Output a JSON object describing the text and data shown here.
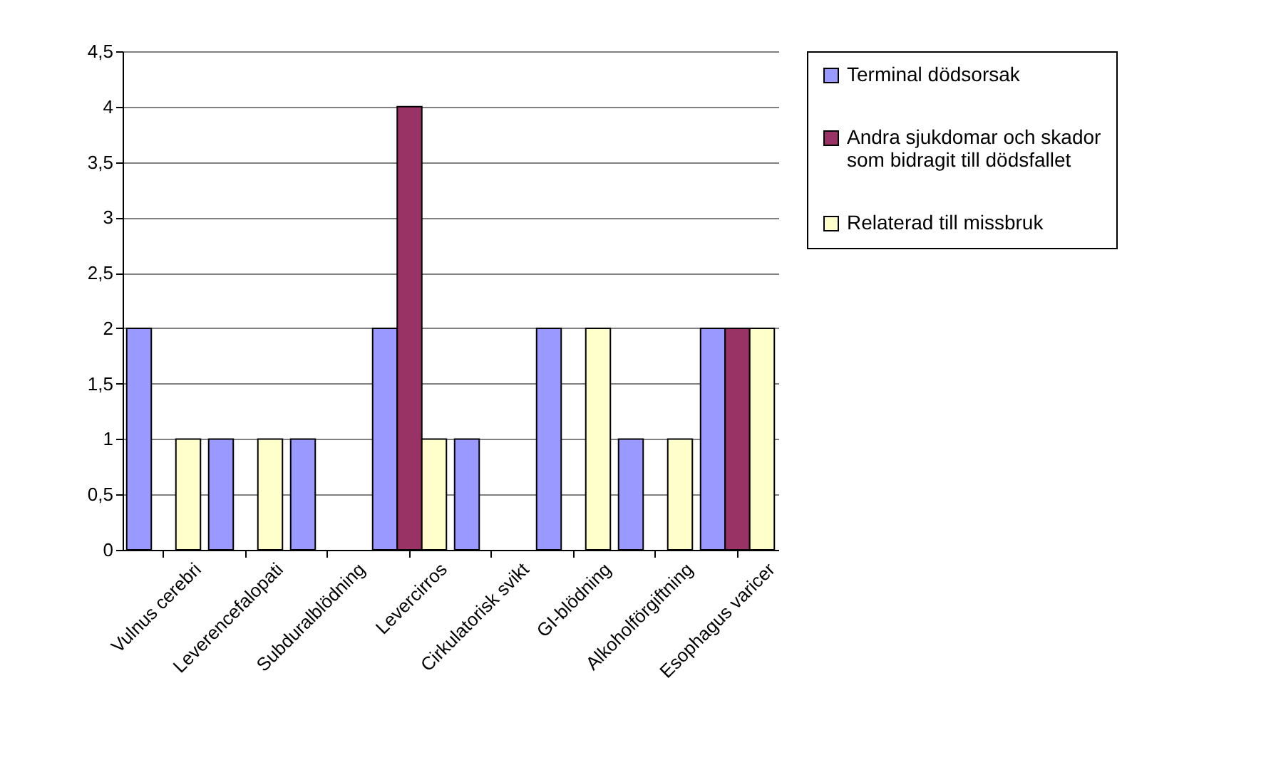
{
  "chart_data": {
    "type": "bar",
    "categories": [
      "Vulnus cerebri",
      "Leverencefalopati",
      "Subduralblödning",
      "Levercirros",
      "Cirkulatorisk svikt",
      "GI-blödning",
      "Alkoholförgiftning",
      "Esophagus varicer"
    ],
    "series": [
      {
        "name": "Terminal dödsorsak",
        "color": "#9999ff",
        "values": [
          2,
          1,
          1,
          2,
          1,
          2,
          1,
          2
        ]
      },
      {
        "name": "Andra sjukdomar och skador som bidragit till dödsfallet",
        "color": "#993366",
        "values": [
          null,
          null,
          null,
          4,
          null,
          null,
          null,
          2
        ]
      },
      {
        "name": "Relaterad till missbruk",
        "color": "#ffffcc",
        "values": [
          1,
          1,
          null,
          1,
          null,
          2,
          1,
          2
        ]
      }
    ],
    "ylim": [
      0,
      4.5
    ],
    "yticks": [
      0,
      {
        "value": 0.5,
        "label": "0,5"
      },
      1,
      {
        "value": 1.5,
        "label": "1,5"
      },
      2,
      {
        "value": 2.5,
        "label": "2,5"
      },
      3,
      {
        "value": 3.5,
        "label": "3,5"
      },
      4,
      {
        "value": 4.5,
        "label": "4,5"
      }
    ],
    "grid": "y",
    "legend": "right"
  }
}
